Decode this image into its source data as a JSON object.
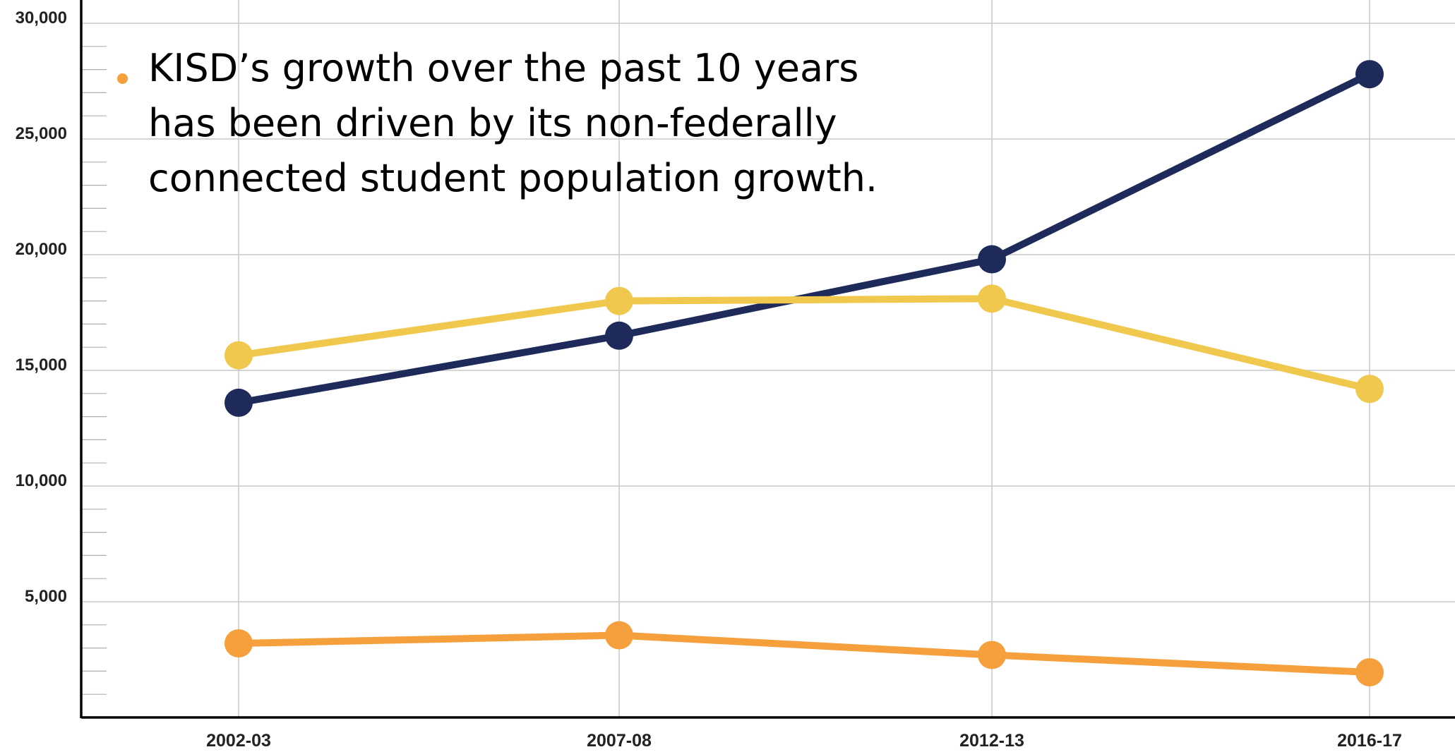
{
  "chart_data": {
    "type": "line",
    "categories": [
      "2002-03",
      "2007-08",
      "2012-13",
      "2016-17"
    ],
    "series": [
      {
        "values": [
          13600,
          16500,
          19800,
          27800
        ],
        "color": "#1e2a5a"
      },
      {
        "values": [
          15650,
          18000,
          18100,
          14200
        ],
        "color": "#f0c84e"
      },
      {
        "values": [
          3200,
          3550,
          2700,
          1950
        ],
        "color": "#f5a03c"
      }
    ],
    "ylim": [
      0,
      30000
    ],
    "yticks": [
      "5,000",
      "10,000",
      "15,000",
      "20,000",
      "25,000",
      "30,000"
    ],
    "grid": true,
    "annotation": {
      "lines": [
        "KISD’s growth over the past 10 years",
        "has been driven by its non-federally",
        "connected student population growth."
      ],
      "bullet_color": "#f5a03c"
    }
  }
}
